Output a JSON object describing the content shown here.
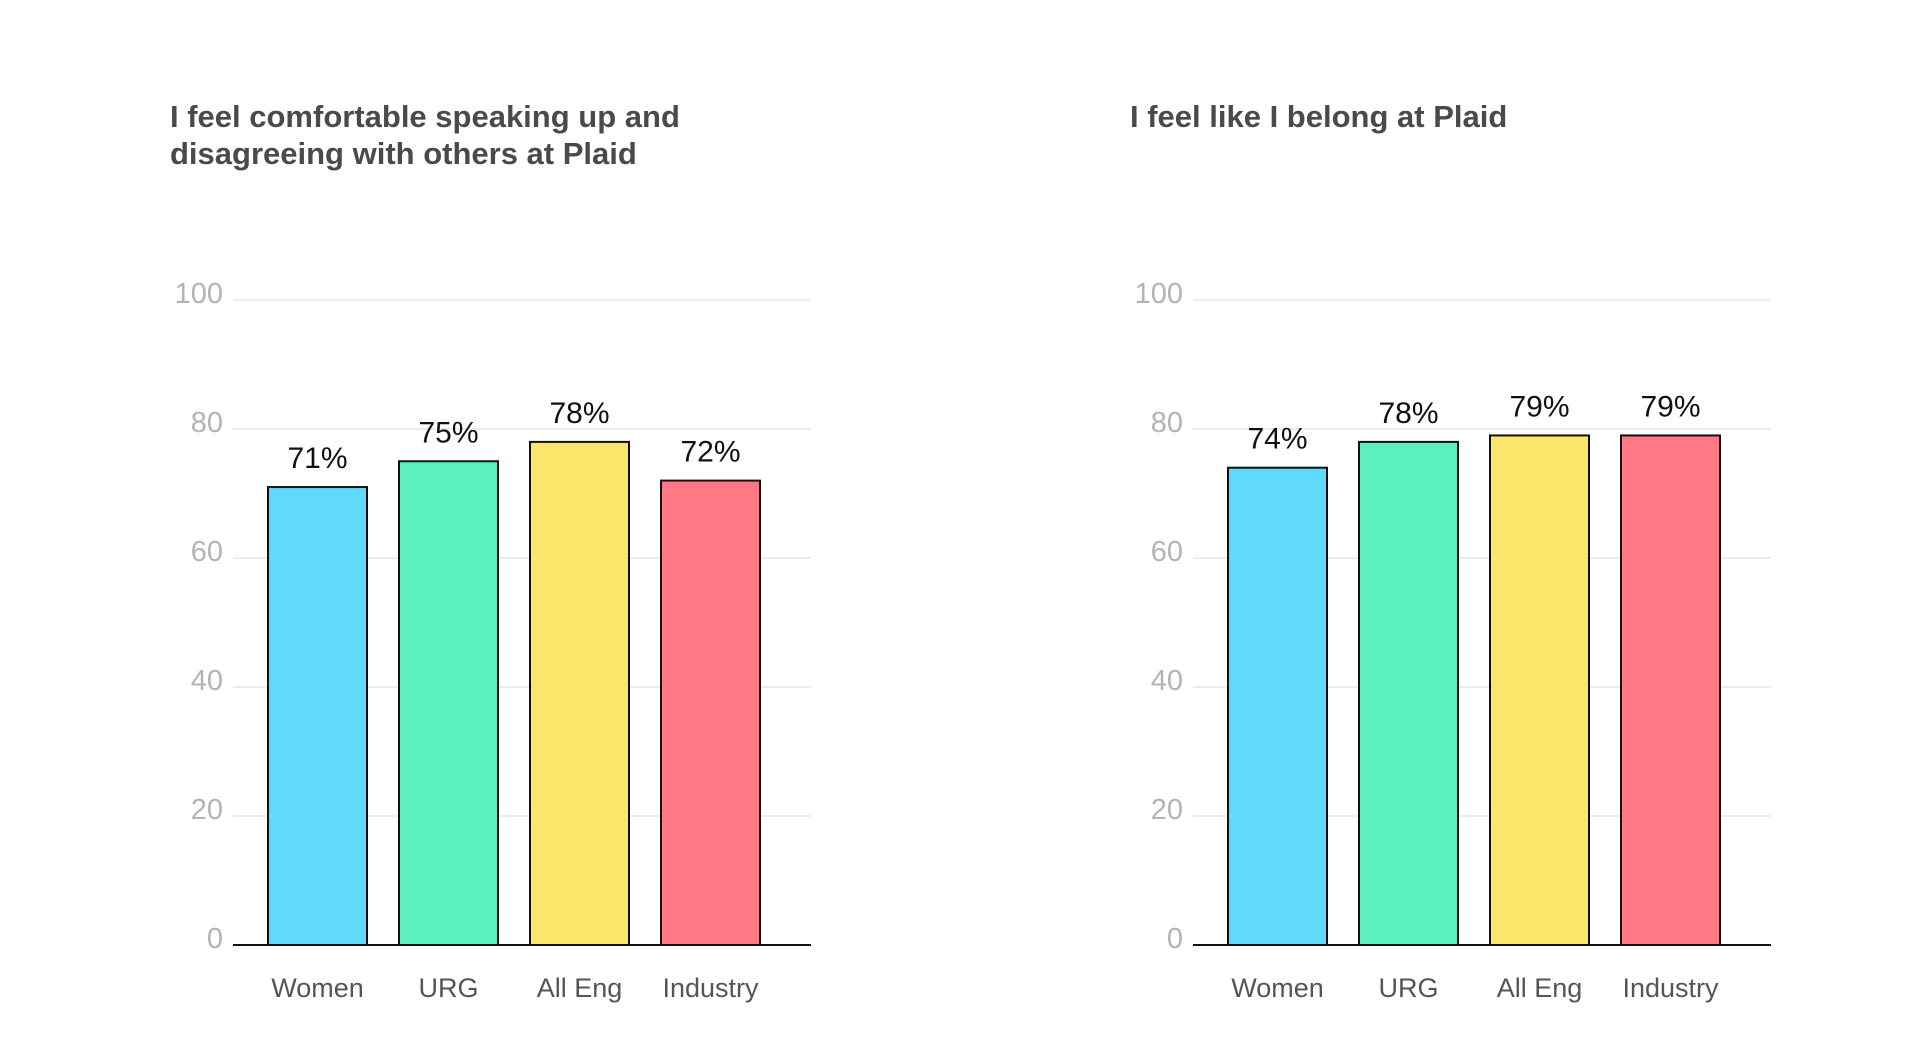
{
  "chart_data": [
    {
      "type": "bar",
      "title": "I feel comfortable speaking up and disagreeing with others at Plaid",
      "categories": [
        "Women",
        "URG",
        "All Eng",
        "Industry"
      ],
      "values": [
        71,
        75,
        78,
        72
      ],
      "value_labels": [
        "71%",
        "75%",
        "78%",
        "72%"
      ],
      "bar_colors": [
        "#61d9fb",
        "#5cf0bd",
        "#fbe56b",
        "#fe7885"
      ],
      "ylim": [
        0,
        100
      ],
      "yticks": [
        0,
        20,
        40,
        60,
        80,
        100
      ],
      "grid": true,
      "xlabel": "",
      "ylabel": ""
    },
    {
      "type": "bar",
      "title": "I feel like I belong at Plaid",
      "categories": [
        "Women",
        "URG",
        "All Eng",
        "Industry"
      ],
      "values": [
        74,
        78,
        79,
        79
      ],
      "value_labels": [
        "74%",
        "78%",
        "79%",
        "79%"
      ],
      "bar_colors": [
        "#61d9fb",
        "#5cf0bd",
        "#fbe56b",
        "#fe7885"
      ],
      "ylim": [
        0,
        100
      ],
      "yticks": [
        0,
        20,
        40,
        60,
        80,
        100
      ],
      "grid": true,
      "xlabel": "",
      "ylabel": ""
    }
  ]
}
